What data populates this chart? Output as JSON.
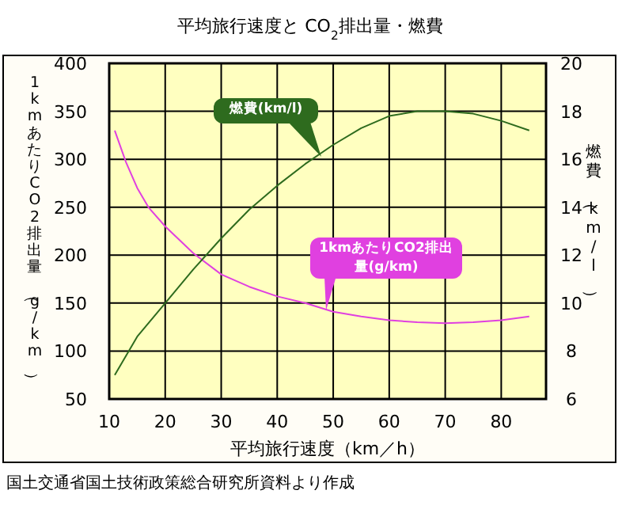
{
  "chart_data": {
    "type": "line",
    "title": "平均旅行速度と CO$_{2}$排出量・燃費",
    "xlabel": "平均旅行速度（km／h）",
    "ylabel": "1kmあたりCO2排出量（g/km）",
    "y2label": "燃費（km/l）",
    "annotations": [
      "国土交通省国土技術政策総合研究所資料より作成"
    ],
    "xlim": [
      10,
      88
    ],
    "xticks": [
      10,
      20,
      30,
      40,
      50,
      60,
      70,
      80
    ],
    "ylim": [
      50,
      400
    ],
    "yticks": [
      50,
      100,
      150,
      200,
      250,
      300,
      350,
      400
    ],
    "y2lim": [
      6,
      20
    ],
    "y2ticks": [
      6,
      8,
      10,
      12,
      14,
      16,
      18,
      20
    ],
    "grid": true,
    "series": [
      {
        "name": "1kmあたりCO2排出量(g/km)",
        "color": "#e040e0",
        "x": [
          11,
          13,
          15,
          17,
          20,
          25,
          30,
          35,
          40,
          45,
          50,
          55,
          60,
          65,
          70,
          75,
          80,
          85
        ],
        "values": [
          330,
          297,
          270,
          250,
          230,
          202,
          180,
          167,
          157,
          150,
          141,
          136,
          132,
          130,
          129,
          130,
          132,
          136
        ]
      },
      {
        "name": "燃費(km/l)",
        "color": "#2e6b1e",
        "axis": "y2",
        "x": [
          11,
          15,
          20,
          25,
          30,
          35,
          40,
          45,
          50,
          55,
          60,
          65,
          70,
          75,
          80,
          85
        ],
        "values": [
          7.0,
          8.6,
          10.0,
          11.4,
          12.7,
          13.9,
          14.9,
          15.8,
          16.6,
          17.3,
          17.8,
          18.0,
          18.0,
          17.9,
          17.6,
          17.2
        ]
      }
    ]
  }
}
